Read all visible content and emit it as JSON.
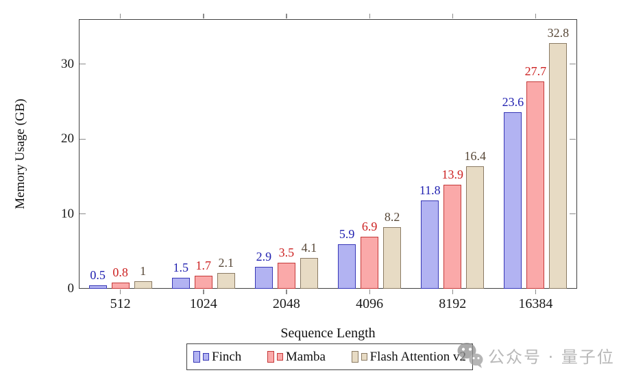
{
  "chart_data": {
    "type": "bar",
    "title": "",
    "xlabel": "Sequence Length",
    "ylabel": "Memory Usage (GB)",
    "categories": [
      "512",
      "1024",
      "2048",
      "4096",
      "8192",
      "16384"
    ],
    "series": [
      {
        "name": "Finch",
        "values": [
          0.5,
          1.5,
          2.9,
          5.9,
          11.8,
          23.6
        ],
        "fill": "#b2b3f2",
        "stroke": "#3737b6",
        "label_color": "#2020b0"
      },
      {
        "name": "Mamba",
        "values": [
          0.8,
          1.7,
          3.5,
          6.9,
          13.9,
          27.7
        ],
        "fill": "#faa9a9",
        "stroke": "#c43838",
        "label_color": "#cc2020"
      },
      {
        "name": "Flash Attention v2",
        "values": [
          1,
          2.1,
          4.1,
          8.2,
          16.4,
          32.8
        ],
        "fill": "#e7dbc4",
        "stroke": "#8a7a63",
        "label_color": "#574737"
      }
    ],
    "yticks": [
      0,
      10,
      20,
      30
    ],
    "ylim": [
      0,
      36
    ],
    "grid": false,
    "legend_position": "below-chart",
    "axis_color": "#404040",
    "tick_color": "#8a8a8a"
  },
  "watermark": {
    "icon": "wechat-icon",
    "text": "公众号 · 量子位"
  }
}
